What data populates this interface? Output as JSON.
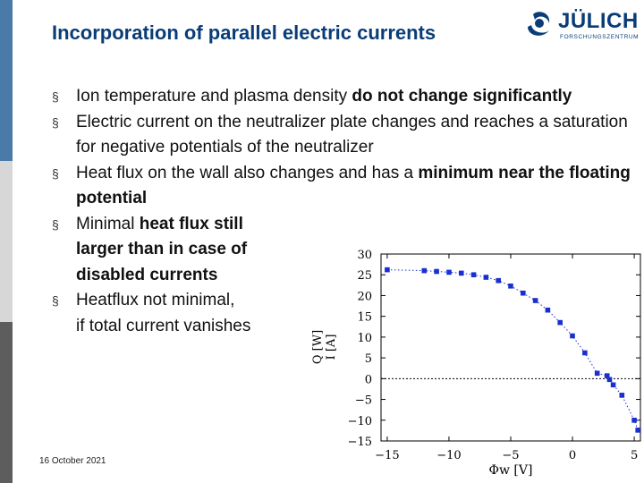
{
  "slide": {
    "title": "Incorporation of parallel electric currents",
    "date": "16 October 2021"
  },
  "logo": {
    "name": "JÜLICH",
    "subtitle": "FORSCHUNGSZENTRUM",
    "brand_color": "#0a3d78"
  },
  "bullet_symbol": "§",
  "bullets": [
    {
      "parts": [
        {
          "text": "Ion temperature and plasma density ",
          "bold": false
        },
        {
          "text": "do not change significantly",
          "bold": true
        }
      ]
    },
    {
      "parts": [
        {
          "text": "Electric current on the neutralizer plate changes and reaches a saturation for negative potentials of the neutralizer",
          "bold": false
        }
      ]
    },
    {
      "parts": [
        {
          "text": "Heat flux on the wall also changes and has a ",
          "bold": false
        },
        {
          "text": "minimum near the floating potential",
          "bold": true
        }
      ]
    },
    {
      "parts": [
        {
          "text": "Minimal ",
          "bold": false
        },
        {
          "text": "heat flux still",
          "bold": true
        },
        {
          "text": "\n",
          "bold": false
        },
        {
          "text": "larger than in case of",
          "bold": true
        },
        {
          "text": "\n",
          "bold": false
        },
        {
          "text": "disabled currents",
          "bold": true
        }
      ]
    },
    {
      "parts": [
        {
          "text": "Heatflux not minimal,",
          "bold": false
        },
        {
          "text": "\n",
          "bold": false
        },
        {
          "text": "if total current vanishes",
          "bold": false
        }
      ]
    }
  ],
  "chart_data": {
    "type": "scatter",
    "xlabel": "Φw [V]",
    "ylabel": [
      "Q [W]",
      "I [A]"
    ],
    "xlim": [
      -15.5,
      5.5
    ],
    "ylim": [
      -15,
      30
    ],
    "x_ticks": [
      -15,
      -10,
      -5,
      0,
      5
    ],
    "x_tick_labels": [
      "−15",
      "−10",
      "−5",
      "0",
      "5"
    ],
    "y_ticks": [
      -15,
      -10,
      -5,
      0,
      5,
      10,
      15,
      20,
      25,
      30
    ],
    "y_tick_labels": [
      "−15",
      "−10",
      "−5",
      "0",
      "5",
      "10",
      "15",
      "20",
      "25",
      "30"
    ],
    "grid": false,
    "zero_line": true,
    "series": [
      {
        "color": "#1a2fd0",
        "marker": "square",
        "line_style": "dotted",
        "x": [
          -15,
          -12,
          -11,
          -10,
          -9,
          -8,
          -7,
          -6,
          -5,
          -4,
          -3,
          -2,
          -1,
          0,
          1,
          2,
          2.8,
          3.0,
          3.3,
          4,
          5,
          5.3
        ],
        "y": [
          26.2,
          26.0,
          25.8,
          25.6,
          25.4,
          25.0,
          24.4,
          23.6,
          22.3,
          20.6,
          18.8,
          16.5,
          13.5,
          10.3,
          6.2,
          1.3,
          0.7,
          -0.2,
          -1.5,
          -4.0,
          -10.0,
          -12.4
        ]
      }
    ]
  }
}
